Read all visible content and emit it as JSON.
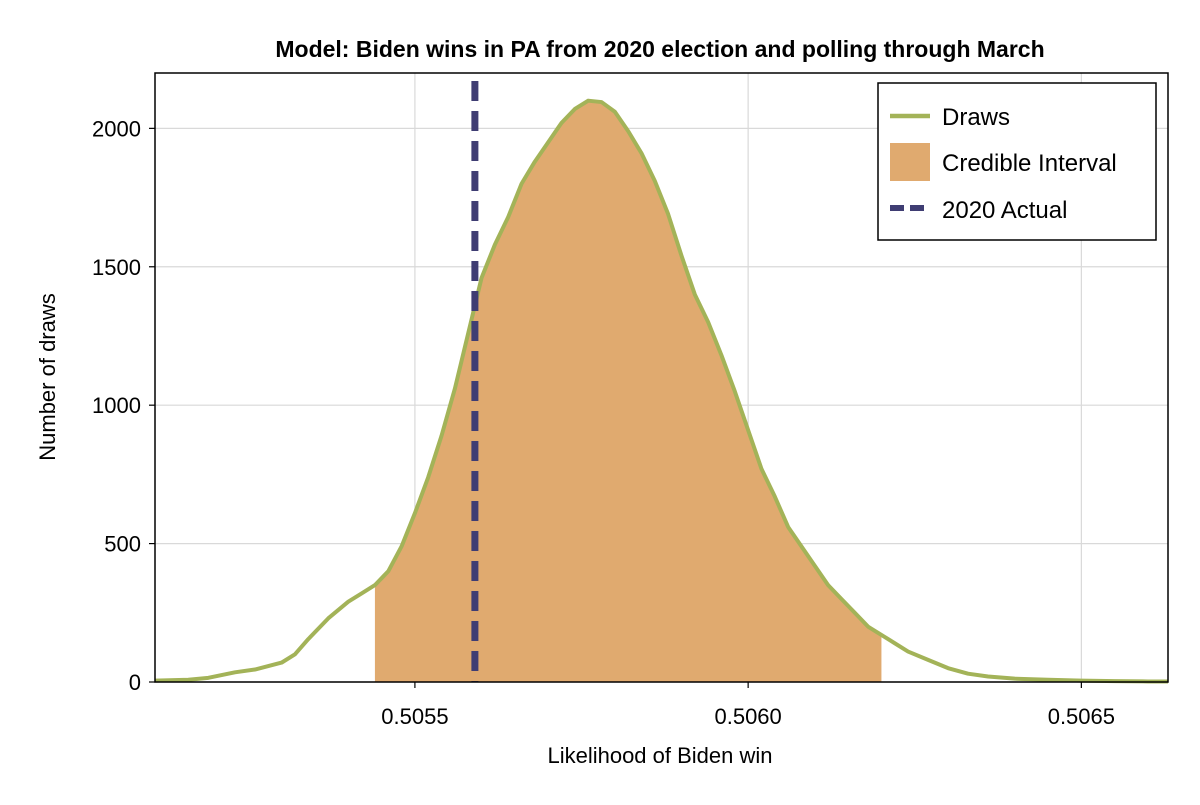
{
  "chart_data": {
    "type": "area",
    "title": "Model: Biden wins in PA from 2020 election and polling through March",
    "xlabel": "Likelihood of Biden win",
    "ylabel": "Number of draws",
    "xlim": [
      0.50511,
      0.50663
    ],
    "ylim": [
      0,
      2200
    ],
    "x_ticks": [
      0.5055,
      0.506,
      0.5065
    ],
    "x_tick_labels": [
      "0.5055",
      "0.5060",
      "0.5065"
    ],
    "y_ticks": [
      0,
      500,
      1000,
      1500,
      2000
    ],
    "y_tick_labels": [
      "0",
      "500",
      "1000",
      "1500",
      "2000"
    ],
    "grid": true,
    "legend_position": "top-right",
    "legend": [
      {
        "key": "draws",
        "label": "Draws"
      },
      {
        "key": "ci",
        "label": "Credible Interval"
      },
      {
        "key": "actual",
        "label": "2020 Actual"
      }
    ],
    "colors": {
      "draws": "#a3b358",
      "ci": "#e0aa6f",
      "actual": "#3f3d73",
      "grid": "#d9d9d9"
    },
    "credible_interval": [
      0.50544,
      0.5062
    ],
    "actual_2020": 0.50559,
    "series": [
      {
        "name": "Draws",
        "x": [
          0.50511,
          0.50516,
          0.50519,
          0.50521,
          0.50523,
          0.50526,
          0.5053,
          0.50532,
          0.50534,
          0.50537,
          0.5054,
          0.50542,
          0.50544,
          0.50546,
          0.50548,
          0.5055,
          0.50552,
          0.50554,
          0.50556,
          0.50558,
          0.5056,
          0.50562,
          0.50564,
          0.50566,
          0.50568,
          0.5057,
          0.50572,
          0.50574,
          0.50576,
          0.50578,
          0.5058,
          0.50582,
          0.50584,
          0.50586,
          0.50588,
          0.5059,
          0.50592,
          0.50594,
          0.50596,
          0.50598,
          0.506,
          0.50602,
          0.50604,
          0.50606,
          0.50608,
          0.5061,
          0.50612,
          0.50614,
          0.50616,
          0.50618,
          0.5062,
          0.50622,
          0.50624,
          0.50627,
          0.5063,
          0.50633,
          0.50636,
          0.5064,
          0.50645,
          0.5065,
          0.50655,
          0.5066,
          0.50663
        ],
        "values": [
          5,
          8,
          15,
          25,
          35,
          45,
          70,
          100,
          155,
          230,
          290,
          320,
          350,
          400,
          490,
          610,
          740,
          890,
          1060,
          1260,
          1460,
          1580,
          1680,
          1800,
          1880,
          1950,
          2020,
          2070,
          2100,
          2095,
          2060,
          1990,
          1910,
          1810,
          1690,
          1540,
          1400,
          1300,
          1180,
          1050,
          910,
          770,
          670,
          560,
          490,
          420,
          350,
          300,
          250,
          200,
          170,
          140,
          110,
          80,
          50,
          30,
          20,
          12,
          8,
          5,
          3,
          2,
          2
        ]
      }
    ]
  }
}
